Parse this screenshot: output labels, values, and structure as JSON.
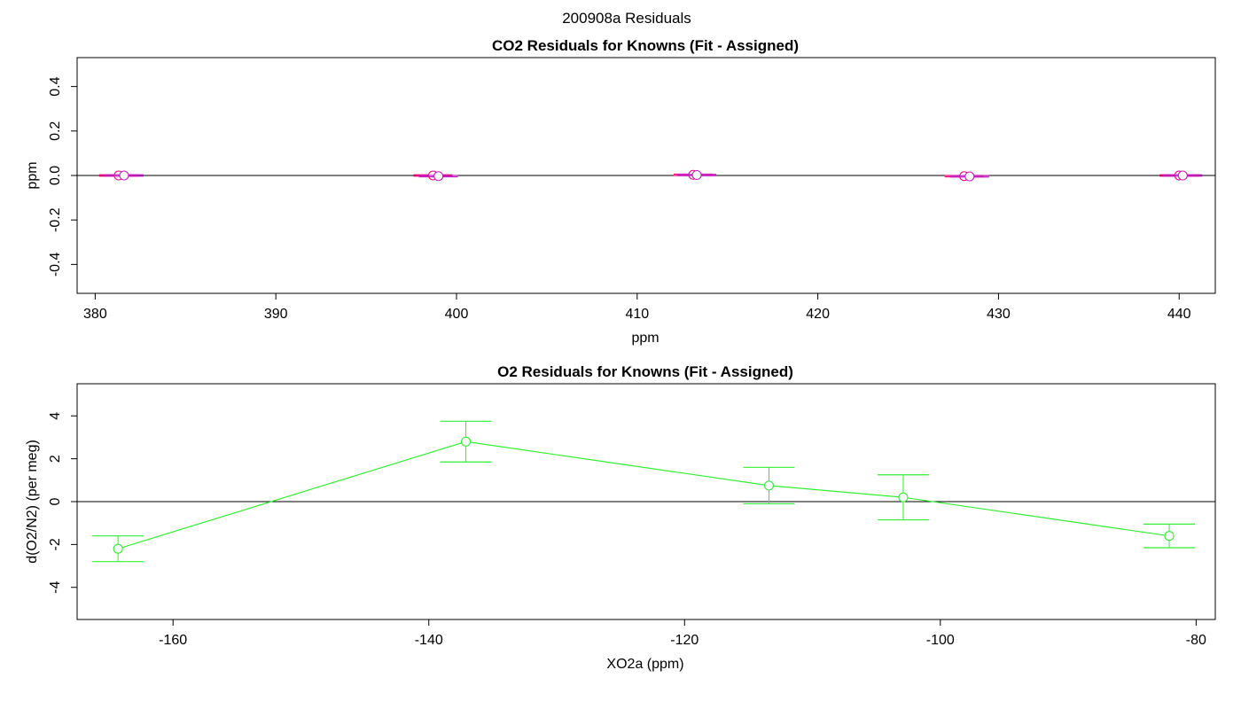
{
  "figure_title": "200908a  Residuals",
  "colors": {
    "co2_series_a": "#ff0080",
    "co2_series_b": "#c020c0",
    "o2_series": "#33ee33",
    "zero_line": "#000000",
    "frame": "#000000"
  },
  "chart_data": [
    {
      "type": "scatter",
      "title": "CO2 Residuals for Knowns (Fit - Assigned)",
      "xlabel": "ppm",
      "ylabel": "ppm",
      "xlim": [
        379,
        442
      ],
      "ylim": [
        -0.53,
        0.53
      ],
      "xticks": [
        380,
        390,
        400,
        410,
        420,
        430,
        440
      ],
      "yticks": [
        -0.4,
        -0.2,
        0.0,
        0.2,
        0.4
      ],
      "hline": 0,
      "grid": false,
      "series": [
        {
          "color": "#ff0080",
          "points": [
            {
              "x": 381.3,
              "y": 0.0,
              "err": 0.003
            },
            {
              "x": 398.7,
              "y": 0.0,
              "err": 0.003
            },
            {
              "x": 413.1,
              "y": 0.003,
              "err": 0.003
            },
            {
              "x": 428.1,
              "y": -0.003,
              "err": 0.003
            },
            {
              "x": 440.0,
              "y": 0.0,
              "err": 0.003
            }
          ]
        },
        {
          "color": "#c020c0",
          "points": [
            {
              "x": 381.6,
              "y": 0.0,
              "err": 0.003
            },
            {
              "x": 399.0,
              "y": -0.003,
              "err": 0.003
            },
            {
              "x": 413.3,
              "y": 0.002,
              "err": 0.003
            },
            {
              "x": 428.4,
              "y": -0.004,
              "err": 0.003
            },
            {
              "x": 440.2,
              "y": 0.0,
              "err": 0.003
            }
          ]
        }
      ]
    },
    {
      "type": "line",
      "title": "O2 Residuals for Knowns (Fit - Assigned)",
      "xlabel": "XO2a (ppm)",
      "ylabel": "d(O2/N2) (per meg)",
      "xlim": [
        -167.5,
        -78.5
      ],
      "ylim": [
        -5.5,
        5.5
      ],
      "xticks": [
        -160,
        -140,
        -120,
        -100,
        -80
      ],
      "yticks": [
        -4,
        -2,
        0,
        2,
        4
      ],
      "hline": 0,
      "grid": false,
      "series": [
        {
          "color": "#33ee33",
          "points": [
            {
              "x": -164.3,
              "y": -2.2,
              "err_low": 0.6,
              "err_high": 0.6
            },
            {
              "x": -137.1,
              "y": 2.8,
              "err_low": 0.95,
              "err_high": 0.95
            },
            {
              "x": -113.4,
              "y": 0.75,
              "err_low": 0.85,
              "err_high": 0.85
            },
            {
              "x": -102.9,
              "y": 0.2,
              "err_low": 1.05,
              "err_high": 1.05
            },
            {
              "x": -82.1,
              "y": -1.6,
              "err_low": 0.55,
              "err_high": 0.55
            }
          ]
        }
      ]
    }
  ]
}
